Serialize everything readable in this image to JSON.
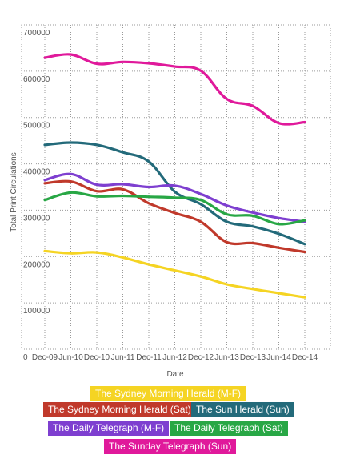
{
  "chart_data": {
    "type": "line",
    "xlabel": "Date",
    "ylabel": "Total Print Circulations",
    "ylim": [
      0,
      700000
    ],
    "grid": true,
    "x": [
      "Dec-09",
      "Jun-10",
      "Dec-10",
      "Jun-11",
      "Dec-11",
      "Jun-12",
      "Dec-12",
      "Jun-13",
      "Dec-13",
      "Jun-14",
      "Dec-14"
    ],
    "y_ticks": [
      "0",
      "100000",
      "200000",
      "300000",
      "400000",
      "500000",
      "600000",
      "700000"
    ],
    "series": [
      {
        "name": "The Sydney Morning Herald (M-F)",
        "color": "#f5d423",
        "values": [
          212000,
          207000,
          209000,
          198000,
          183000,
          170000,
          157000,
          140000,
          130000,
          121000,
          112000
        ]
      },
      {
        "name": "The Sydney Morning Herald (Sat)",
        "color": "#c0392b",
        "values": [
          358000,
          362000,
          341000,
          345000,
          315000,
          294000,
          275000,
          231000,
          229000,
          219000,
          210000
        ]
      },
      {
        "name": "The Sun Herald (Sun)",
        "color": "#236a7a",
        "values": [
          441000,
          446000,
          441000,
          425000,
          405000,
          340000,
          313000,
          275000,
          265000,
          249000,
          227000
        ]
      },
      {
        "name": "The Daily Telegraph (M-F)",
        "color": "#7e3fd0",
        "values": [
          365000,
          378000,
          355000,
          356000,
          350000,
          353000,
          335000,
          310000,
          295000,
          283000,
          275000
        ]
      },
      {
        "name": "The Daily Telegraph (Sat)",
        "color": "#28a745",
        "values": [
          322000,
          338000,
          330000,
          331000,
          329000,
          327000,
          322000,
          291000,
          288000,
          270000,
          278000
        ]
      },
      {
        "name": "The Sunday Telegraph (Sun)",
        "color": "#e0199b",
        "values": [
          629000,
          636000,
          616000,
          620000,
          617000,
          610000,
          601000,
          540000,
          525000,
          488000,
          490000
        ]
      }
    ]
  }
}
